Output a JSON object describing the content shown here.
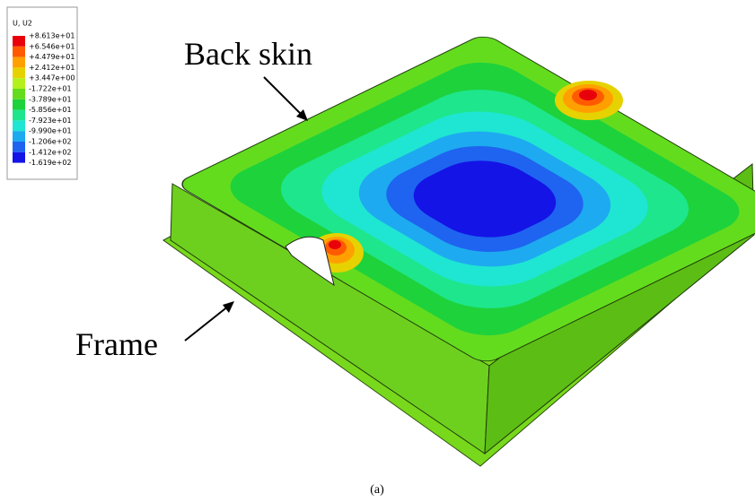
{
  "legend": {
    "title": "U, U2",
    "labels": [
      "+8.613e+01",
      "+6.546e+01",
      "+4.479e+01",
      "+2.412e+01",
      "+3.447e+00",
      "-1.722e+01",
      "-3.789e+01",
      "-5.856e+01",
      "-7.923e+01",
      "-9.990e+01",
      "-1.206e+02",
      "-1.412e+02",
      "-1.619e+02"
    ],
    "colors": [
      "#e8000b",
      "#ff5a00",
      "#ffa000",
      "#e6d200",
      "#b4f01e",
      "#64dc1e",
      "#1ed23c",
      "#1ee68c",
      "#1ee6d2",
      "#1eaaf0",
      "#1e64f0",
      "#1414e6"
    ]
  },
  "annotations": {
    "back_skin": "Back skin",
    "frame": "Frame"
  },
  "caption": "(a)"
}
